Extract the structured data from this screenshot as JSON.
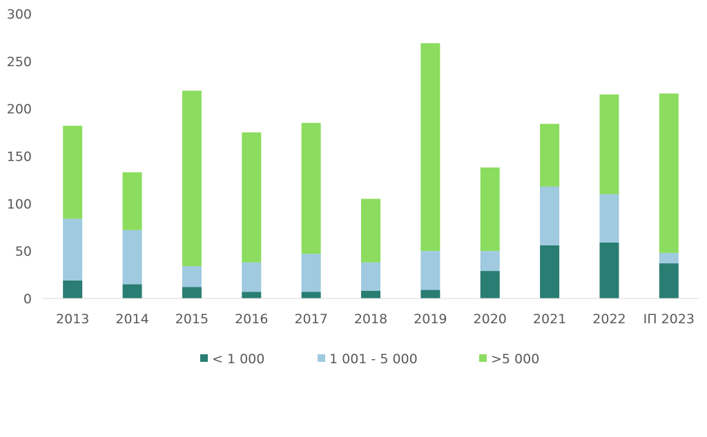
{
  "chart_data": {
    "type": "bar",
    "stacked": true,
    "title": "",
    "xlabel": "",
    "ylabel": "",
    "ylim": [
      0,
      300
    ],
    "yticks": [
      0,
      50,
      100,
      150,
      200,
      250,
      300
    ],
    "categories": [
      "2013",
      "2014",
      "2015",
      "2016",
      "2017",
      "2018",
      "2019",
      "2020",
      "2021",
      "2022",
      "ІП 2023"
    ],
    "series": [
      {
        "name": "< 1 000",
        "color": "#2a7d72",
        "values": [
          19,
          15,
          12,
          7,
          7,
          8,
          9,
          29,
          56,
          59,
          37
        ]
      },
      {
        "name": "1 001 - 5 000",
        "color": "#9fcae0",
        "values": [
          65,
          57,
          22,
          31,
          40,
          30,
          41,
          21,
          62,
          51,
          11
        ]
      },
      {
        "name": ">5 000",
        "color": "#8cdc5f",
        "values": [
          98,
          61,
          185,
          137,
          138,
          67,
          219,
          88,
          66,
          105,
          168
        ]
      }
    ],
    "legend_position": "bottom",
    "grid": false
  }
}
